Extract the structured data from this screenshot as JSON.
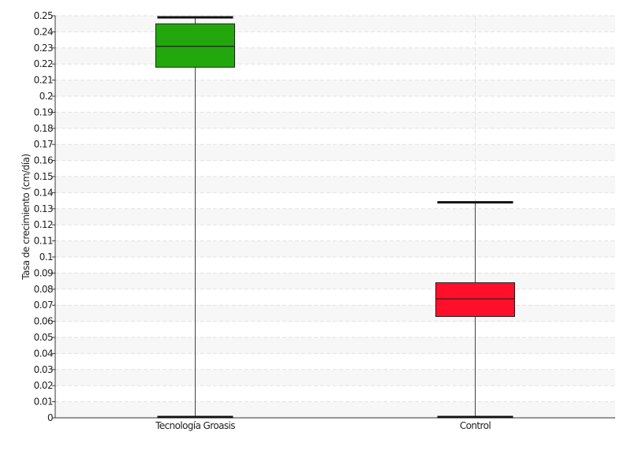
{
  "chart_data": {
    "type": "boxplot",
    "title": "",
    "xlabel": "",
    "ylabel": "Tasa de crecimiento (cm/día)",
    "ylim": [
      0,
      0.25
    ],
    "y_ticks": [
      "0",
      "0.01",
      "0.02",
      "0.03",
      "0.04",
      "0.05",
      "0.06",
      "0.07",
      "0.08",
      "0.09",
      "0.1",
      "0.11",
      "0.12",
      "0.13",
      "0.14",
      "0.15",
      "0.16",
      "0.17",
      "0.18",
      "0.19",
      "0.2",
      "0.21",
      "0.22",
      "0.23",
      "0.24",
      "0.25"
    ],
    "grid": true,
    "categories": [
      "Tecnología Groasis",
      "Control"
    ],
    "boxes": [
      {
        "category": "Tecnología Groasis",
        "min": 0,
        "q1": 0.218,
        "median": 0.231,
        "q3": 0.245,
        "max": 0.249,
        "color": "#22a80c"
      },
      {
        "category": "Control",
        "min": 0,
        "q1": 0.063,
        "median": 0.074,
        "q3": 0.084,
        "max": 0.134,
        "color": "#ff0f2a"
      }
    ]
  }
}
